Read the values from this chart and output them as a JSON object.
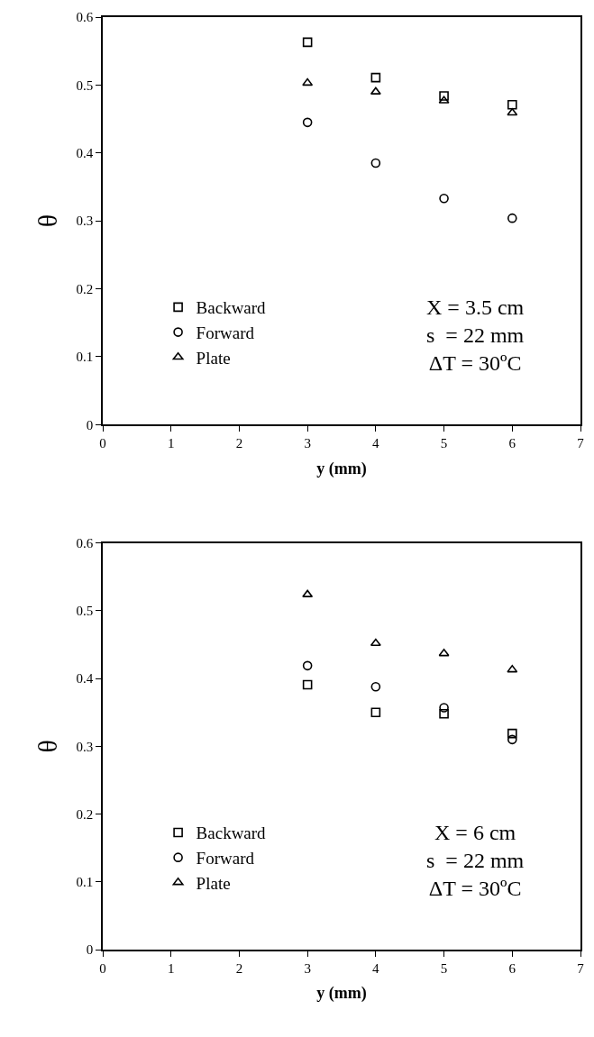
{
  "chart_data": [
    {
      "type": "scatter",
      "xlabel": "y (mm)",
      "ylabel": "θ",
      "xlim": [
        0,
        7
      ],
      "xticks": [
        0,
        1,
        2,
        3,
        4,
        5,
        6,
        7
      ],
      "ylim": [
        0,
        0.6
      ],
      "yticks": [
        0,
        0.1,
        0.2,
        0.3,
        0.4,
        0.5,
        0.6
      ],
      "grid": false,
      "legend": "bottom left",
      "x": [
        3,
        4,
        5,
        6
      ],
      "series": [
        {
          "name": "Backward",
          "color": "#000000",
          "marker": "square",
          "values": [
            0.563,
            0.511,
            0.484,
            0.471
          ]
        },
        {
          "name": "Forward",
          "color": "#000000",
          "marker": "circle",
          "values": [
            0.445,
            0.385,
            0.333,
            0.304
          ]
        },
        {
          "name": "Plate",
          "color": "#000000",
          "marker": "triangle",
          "values": [
            0.503,
            0.49,
            0.477,
            0.459
          ]
        }
      ],
      "annotations": [
        "X = 3.5 cm",
        "s  = 22 mm",
        "ΔT = 30ºC"
      ]
    },
    {
      "type": "scatter",
      "xlabel": "y (mm)",
      "ylabel": "θ",
      "xlim": [
        0,
        7
      ],
      "xticks": [
        0,
        1,
        2,
        3,
        4,
        5,
        6,
        7
      ],
      "ylim": [
        0,
        0.6
      ],
      "yticks": [
        0,
        0.1,
        0.2,
        0.3,
        0.4,
        0.5,
        0.6
      ],
      "grid": false,
      "legend": "bottom left",
      "x": [
        3,
        4,
        5,
        6
      ],
      "series": [
        {
          "name": "Backward",
          "color": "#000000",
          "marker": "square",
          "values": [
            0.391,
            0.35,
            0.348,
            0.319
          ]
        },
        {
          "name": "Forward",
          "color": "#000000",
          "marker": "circle",
          "values": [
            0.419,
            0.388,
            0.357,
            0.31
          ]
        },
        {
          "name": "Plate",
          "color": "#000000",
          "marker": "triangle",
          "values": [
            0.524,
            0.452,
            0.437,
            0.413
          ]
        }
      ],
      "annotations": [
        "X = 6 cm",
        "s  = 22 mm",
        "ΔT = 30ºC"
      ]
    }
  ]
}
